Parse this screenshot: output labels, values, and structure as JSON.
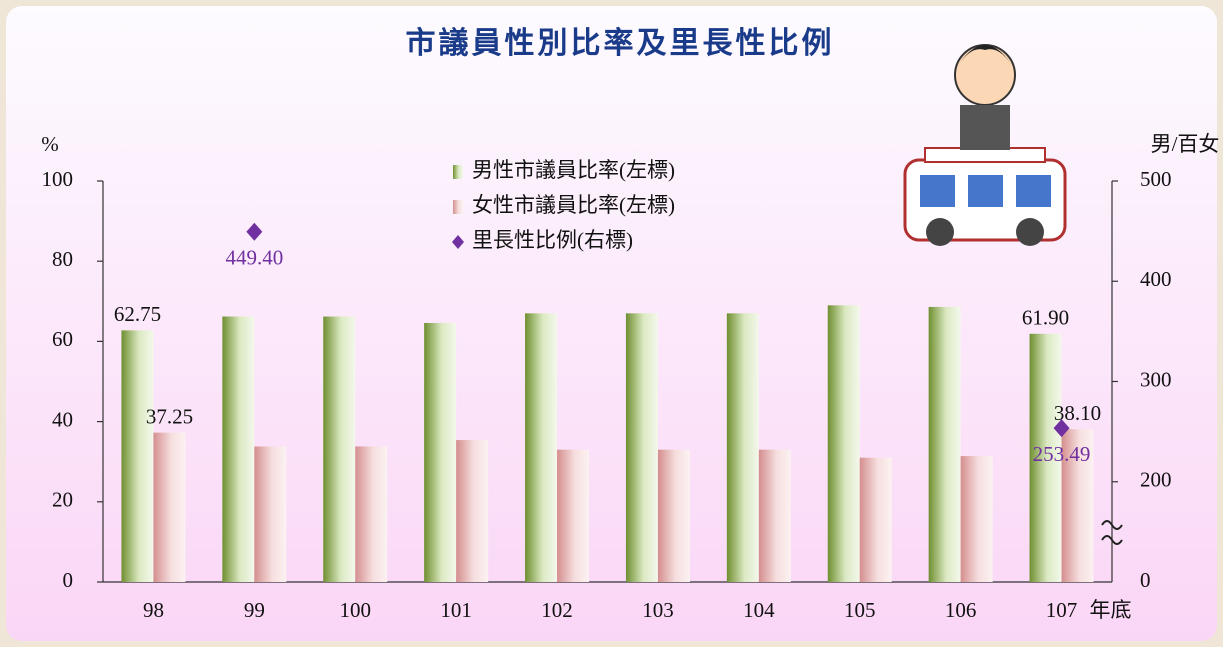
{
  "chart_data": {
    "type": "bar",
    "title": "市議員性別比率及里長性比例",
    "y_label": "%",
    "y2_label": "男/百女",
    "x_unit_label": "年底",
    "categories": [
      "98",
      "99",
      "100",
      "101",
      "102",
      "103",
      "104",
      "105",
      "106",
      "107"
    ],
    "series": [
      {
        "name": "男性市議員比率(左標)",
        "color": "#7a9a3a",
        "values": [
          62.75,
          66.2,
          66.2,
          64.6,
          67.0,
          67.0,
          67.0,
          69.0,
          68.6,
          61.9
        ],
        "value_labels": [
          "62.75",
          null,
          null,
          null,
          null,
          null,
          null,
          null,
          null,
          "61.90"
        ]
      },
      {
        "name": "女性市議員比率(左標)",
        "color": "#d89a9a",
        "values": [
          37.25,
          33.8,
          33.8,
          35.4,
          33.0,
          33.0,
          33.0,
          31.0,
          31.4,
          38.1
        ],
        "value_labels": [
          "37.25",
          null,
          null,
          null,
          null,
          null,
          null,
          null,
          null,
          "38.10"
        ]
      },
      {
        "name": "里長性比例(右標)",
        "color": "#7030a0",
        "axis": "y2",
        "type": "scatter",
        "values": [
          null,
          449.4,
          null,
          null,
          null,
          null,
          null,
          null,
          null,
          253.49
        ],
        "value_labels": [
          null,
          "449.40",
          null,
          null,
          null,
          null,
          null,
          null,
          null,
          "253.49"
        ]
      }
    ],
    "ylim": [
      0,
      100
    ],
    "yticks": [
      0,
      20,
      40,
      60,
      80,
      100
    ],
    "y2lim": [
      100,
      500
    ],
    "y2ticks": [
      200,
      300,
      400,
      500
    ],
    "y2_break_label": "0"
  }
}
